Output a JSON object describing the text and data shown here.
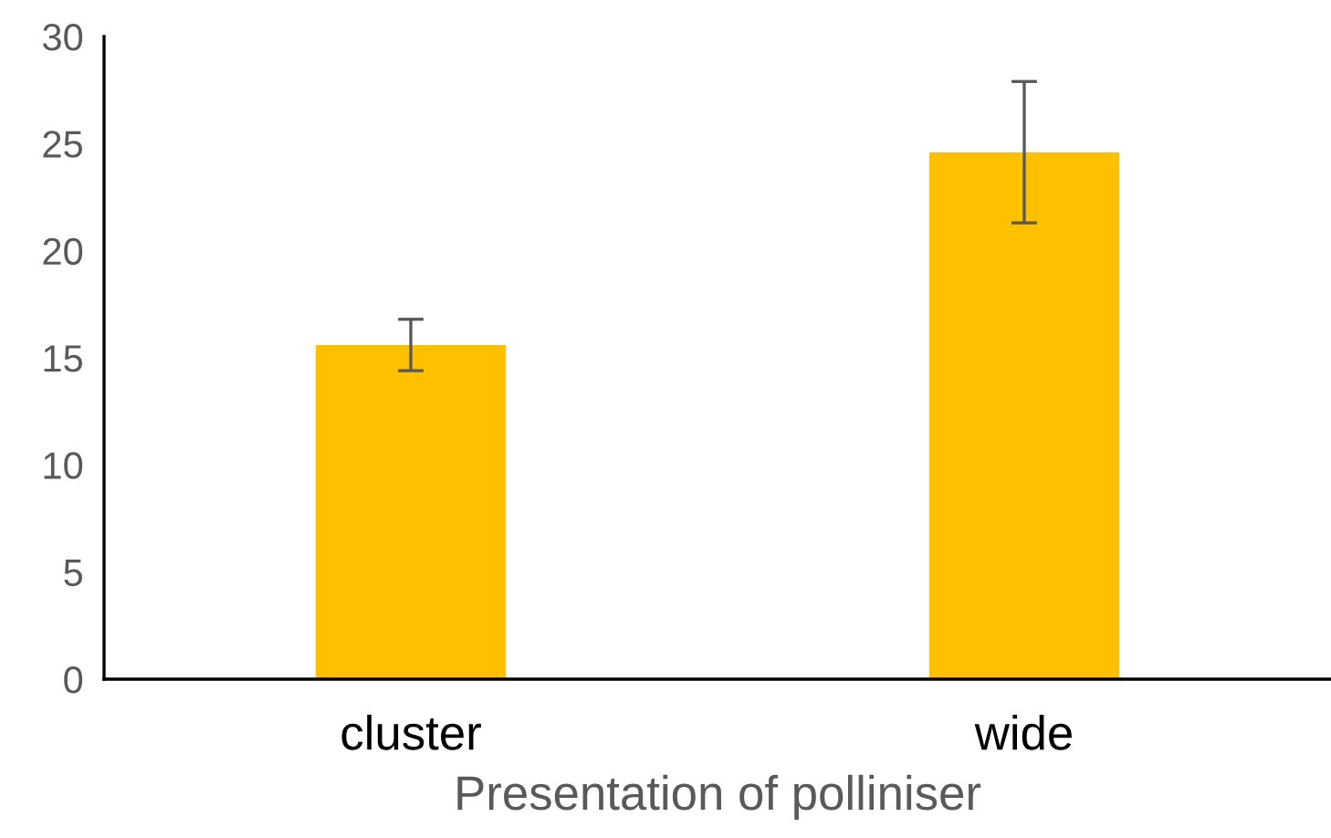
{
  "chart_data": {
    "type": "bar",
    "xlabel": "Presentation of polliniser",
    "categories": [
      "cluster",
      "wide"
    ],
    "values": [
      15.6,
      24.6
    ],
    "errors": [
      1.2,
      3.3
    ],
    "color": "#ffc000",
    "ylim": [
      0,
      30
    ],
    "yticks": [
      0,
      5,
      10,
      15,
      20,
      25,
      30
    ],
    "grid": false,
    "legend": false
  }
}
